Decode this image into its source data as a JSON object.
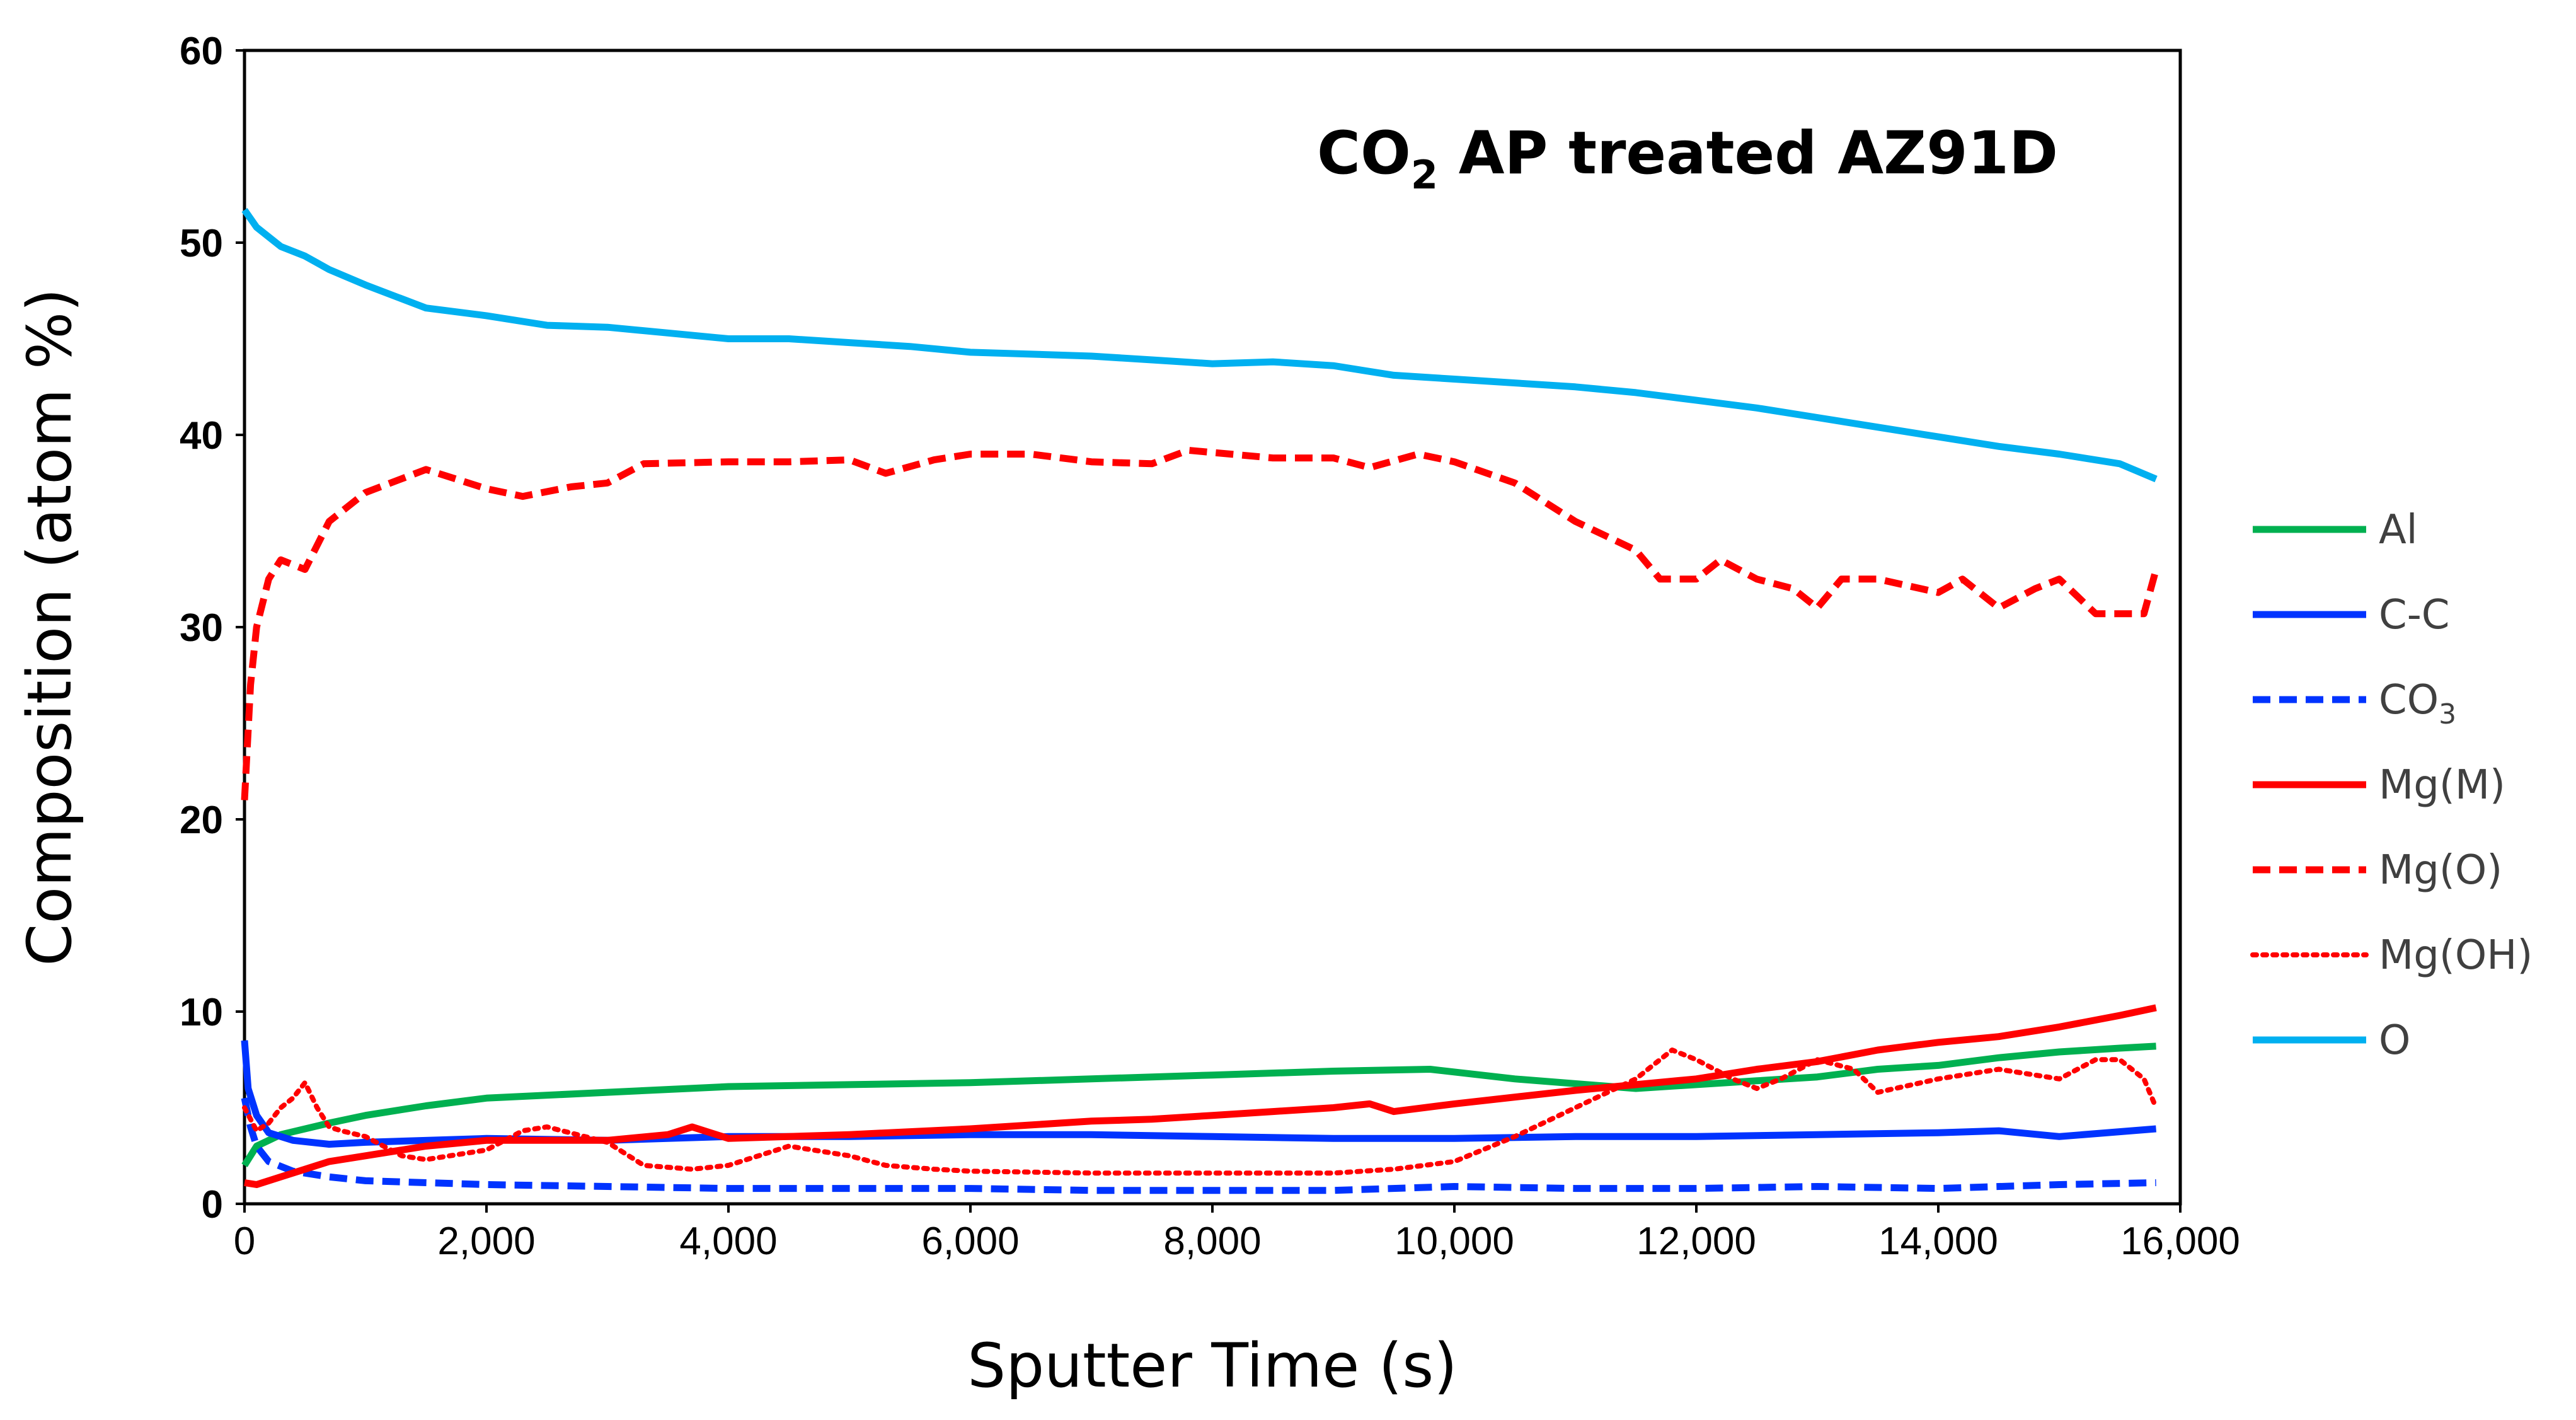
{
  "chart_data": {
    "type": "line",
    "title": "CO2 AP treated AZ91D",
    "title_main": "CO",
    "title_sub": "2",
    "title_rest": " AP treated AZ91D",
    "xlabel": "Sputter Time (s)",
    "ylabel": "Composition (atom %)",
    "xlim": [
      0,
      16000
    ],
    "ylim": [
      0,
      60
    ],
    "x_ticks": [
      0,
      2000,
      4000,
      6000,
      8000,
      10000,
      12000,
      14000,
      16000
    ],
    "x_tick_labels": [
      "0",
      "2,000",
      "4,000",
      "6,000",
      "8,000",
      "10,000",
      "12,000",
      "14,000",
      "16,000"
    ],
    "y_ticks": [
      0,
      10,
      20,
      30,
      40,
      50,
      60
    ],
    "y_tick_labels": [
      "0",
      "10",
      "20",
      "30",
      "40",
      "50",
      "60"
    ],
    "legend_position": "right",
    "series": [
      {
        "name": "Al",
        "label_main": "Al",
        "label_sub": "",
        "color": "#00b050",
        "dash": "solid",
        "x": [
          0,
          100,
          300,
          700,
          1000,
          1500,
          2000,
          3000,
          4000,
          5000,
          6000,
          7000,
          8000,
          9000,
          9800,
          10500,
          11500,
          12500,
          13000,
          13500,
          14000,
          14500,
          15000,
          15500,
          15800
        ],
        "y": [
          2,
          3,
          3.6,
          4.2,
          4.6,
          5.1,
          5.5,
          5.8,
          6.1,
          6.2,
          6.3,
          6.5,
          6.7,
          6.9,
          7.0,
          6.5,
          6.0,
          6.4,
          6.6,
          7.0,
          7.2,
          7.6,
          7.9,
          8.1,
          8.2
        ]
      },
      {
        "name": "C-C",
        "label_main": "C-C",
        "label_sub": "",
        "color": "#0033ff",
        "dash": "solid",
        "x": [
          0,
          30,
          100,
          200,
          400,
          700,
          1000,
          2000,
          3000,
          4000,
          5000,
          6000,
          7000,
          8000,
          9000,
          10000,
          11000,
          12000,
          13000,
          14000,
          14500,
          15000,
          15800
        ],
        "y": [
          8.5,
          6,
          4.6,
          3.7,
          3.3,
          3.1,
          3.2,
          3.4,
          3.3,
          3.5,
          3.5,
          3.6,
          3.6,
          3.5,
          3.4,
          3.4,
          3.5,
          3.5,
          3.6,
          3.7,
          3.8,
          3.5,
          3.9
        ]
      },
      {
        "name": "CO3",
        "label_main": "CO",
        "label_sub": "3",
        "color": "#0033ff",
        "dash": "dash",
        "x": [
          0,
          50,
          100,
          200,
          400,
          700,
          1000,
          2000,
          3000,
          4000,
          5000,
          6000,
          7000,
          8000,
          9000,
          10000,
          11000,
          12000,
          13000,
          14000,
          15000,
          15800
        ],
        "y": [
          5.5,
          4,
          3,
          2.2,
          1.7,
          1.4,
          1.2,
          1.0,
          0.9,
          0.8,
          0.8,
          0.8,
          0.7,
          0.7,
          0.7,
          0.9,
          0.8,
          0.8,
          0.9,
          0.8,
          1.0,
          1.1
        ]
      },
      {
        "name": "Mg(M)",
        "label_main": "Mg(M)",
        "label_sub": "",
        "color": "#ff0000",
        "dash": "solid",
        "x": [
          0,
          100,
          300,
          500,
          700,
          1000,
          1500,
          2000,
          2500,
          3000,
          3500,
          3700,
          4000,
          5000,
          6000,
          7000,
          7500,
          8000,
          8500,
          9000,
          9300,
          9500,
          10000,
          11000,
          12000,
          12500,
          13000,
          13500,
          14000,
          14500,
          15000,
          15500,
          15800
        ],
        "y": [
          1.1,
          1.0,
          1.4,
          1.8,
          2.2,
          2.5,
          3.0,
          3.3,
          3.3,
          3.3,
          3.6,
          4.0,
          3.4,
          3.6,
          3.9,
          4.3,
          4.4,
          4.6,
          4.8,
          5.0,
          5.2,
          4.8,
          5.2,
          5.9,
          6.5,
          7.0,
          7.4,
          8.0,
          8.4,
          8.7,
          9.2,
          9.8,
          10.2
        ]
      },
      {
        "name": "Mg(O)",
        "label_main": "Mg(O)",
        "label_sub": "",
        "color": "#ff0000",
        "dash": "dash",
        "x": [
          0,
          50,
          100,
          200,
          300,
          500,
          700,
          1000,
          1500,
          2000,
          2300,
          2700,
          3000,
          3300,
          4000,
          4500,
          5000,
          5300,
          5700,
          6000,
          6500,
          7000,
          7500,
          7800,
          8500,
          9000,
          9300,
          9700,
          10000,
          10500,
          11000,
          11500,
          11700,
          12000,
          12200,
          12500,
          12800,
          13000,
          13200,
          13500,
          14000,
          14200,
          14500,
          14800,
          15000,
          15300,
          15700,
          15800
        ],
        "y": [
          21,
          27,
          30,
          32.5,
          33.5,
          33.0,
          35.5,
          37.0,
          38.2,
          37.2,
          36.8,
          37.3,
          37.5,
          38.5,
          38.6,
          38.6,
          38.7,
          38.0,
          38.7,
          39.0,
          39.0,
          38.6,
          38.5,
          39.2,
          38.8,
          38.8,
          38.3,
          39.0,
          38.6,
          37.5,
          35.5,
          34.0,
          32.5,
          32.5,
          33.5,
          32.5,
          32.0,
          31.0,
          32.5,
          32.5,
          31.8,
          32.5,
          31.0,
          32.0,
          32.5,
          30.7,
          30.7,
          33.0
        ]
      },
      {
        "name": "Mg(OH)",
        "label_main": "Mg(OH)",
        "label_sub": "",
        "color": "#ff0000",
        "dash": "dot",
        "x": [
          0,
          100,
          200,
          300,
          400,
          500,
          600,
          700,
          800,
          1000,
          1300,
          1500,
          2000,
          2300,
          2500,
          3000,
          3300,
          3700,
          4000,
          4500,
          5000,
          5300,
          5700,
          6000,
          7000,
          8000,
          9000,
          9500,
          10000,
          10500,
          11000,
          11500,
          11800,
          12000,
          12300,
          12500,
          12700,
          13000,
          13300,
          13500,
          14000,
          14500,
          15000,
          15300,
          15500,
          15700,
          15800
        ],
        "y": [
          5.0,
          3.8,
          4.2,
          5.0,
          5.5,
          6.3,
          5.0,
          4.0,
          3.8,
          3.5,
          2.5,
          2.3,
          2.8,
          3.8,
          4.0,
          3.2,
          2.0,
          1.8,
          2.0,
          3.0,
          2.5,
          2.0,
          1.8,
          1.7,
          1.6,
          1.6,
          1.6,
          1.8,
          2.2,
          3.5,
          5.0,
          6.5,
          8.0,
          7.5,
          6.5,
          6.0,
          6.5,
          7.5,
          7.0,
          5.8,
          6.5,
          7.0,
          6.5,
          7.5,
          7.5,
          6.5,
          5.0
        ]
      },
      {
        "name": "O",
        "label_main": "O",
        "label_sub": "",
        "color": "#00b0f0",
        "dash": "solid",
        "x": [
          0,
          100,
          300,
          500,
          700,
          1000,
          1500,
          2000,
          2500,
          3000,
          3500,
          4000,
          4500,
          5000,
          5500,
          6000,
          6500,
          7000,
          7500,
          8000,
          8500,
          9000,
          9500,
          10000,
          11000,
          11500,
          12000,
          12500,
          13000,
          13500,
          14000,
          14500,
          15000,
          15500,
          15800
        ],
        "y": [
          51.7,
          50.8,
          49.8,
          49.3,
          48.6,
          47.8,
          46.6,
          46.2,
          45.7,
          45.6,
          45.3,
          45.0,
          45.0,
          44.8,
          44.6,
          44.3,
          44.2,
          44.1,
          43.9,
          43.7,
          43.8,
          43.6,
          43.1,
          42.9,
          42.5,
          42.2,
          41.8,
          41.4,
          40.9,
          40.4,
          39.9,
          39.4,
          39.0,
          38.5,
          37.7
        ]
      }
    ]
  }
}
